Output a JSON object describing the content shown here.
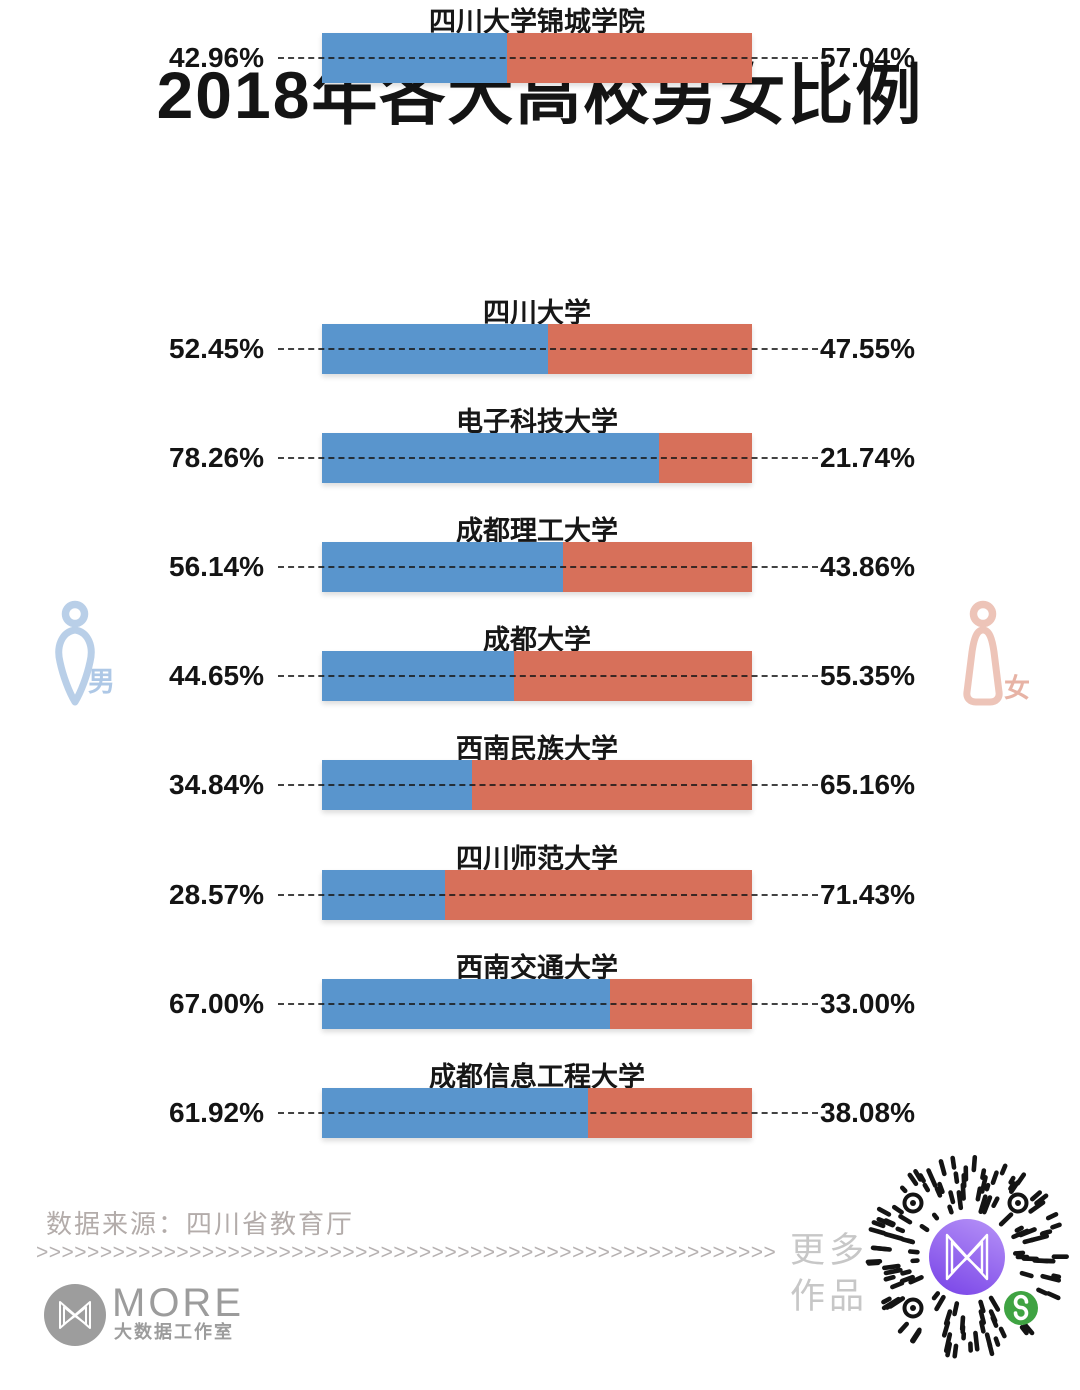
{
  "title": "2018年各大高校男女比例",
  "legend": {
    "male_label": "男",
    "female_label": "女"
  },
  "colors": {
    "male_bar": "#5995cd",
    "female_bar": "#d7705a",
    "male_icon": "#b9cfe8",
    "female_icon": "#edc4b8",
    "qr_purple_light": "#b18cf6",
    "qr_purple_dark": "#7c48e8",
    "qr_green": "#3fa342",
    "logo_gray": "#9c9c9c"
  },
  "chart_data": {
    "type": "bar",
    "orientation": "horizontal-stacked",
    "title": "2018年各大高校男女比例",
    "categories": [
      "四川大学",
      "电子科技大学",
      "成都理工大学",
      "成都大学",
      "西南民族大学",
      "四川师范大学",
      "西南交通大学",
      "成都信息工程大学",
      "四川大学锦城学院"
    ],
    "series": [
      {
        "name": "男",
        "color": "#5995cd",
        "values": [
          52.45,
          78.26,
          56.14,
          44.65,
          34.84,
          28.57,
          67.0,
          61.92,
          42.96
        ]
      },
      {
        "name": "女",
        "color": "#d7705a",
        "values": [
          47.55,
          21.74,
          43.86,
          55.35,
          65.16,
          71.43,
          33.0,
          38.08,
          57.04
        ]
      }
    ],
    "value_format": "percent",
    "xlim": [
      0,
      100
    ],
    "grid": false,
    "legend_position": "sides"
  },
  "rows": [
    {
      "school": "四川大学",
      "male": "52.45%",
      "female": "47.55%"
    },
    {
      "school": "电子科技大学",
      "male": "78.26%",
      "female": "21.74%"
    },
    {
      "school": "成都理工大学",
      "male": "56.14%",
      "female": "43.86%"
    },
    {
      "school": "成都大学",
      "male": "44.65%",
      "female": "55.35%"
    },
    {
      "school": "西南民族大学",
      "male": "34.84%",
      "female": "65.16%"
    },
    {
      "school": "四川师范大学",
      "male": "28.57%",
      "female": "71.43%"
    },
    {
      "school": "西南交通大学",
      "male": "67.00%",
      "female": "33.00%"
    },
    {
      "school": "成都信息工程大学",
      "male": "61.92%",
      "female": "38.08%"
    },
    {
      "school": "四川大学锦城学院",
      "male": "42.96%",
      "female": "57.04%"
    }
  ],
  "footer": {
    "source": "数据来源：四川省教育厅",
    "chevrons": ">>>>>>>>>>>>>>>>>>>>>>>>>>>>>>>>>>>>>>>>>>>>>>>>>>>>>>>>>>",
    "logo_name": "MORE",
    "logo_sub": "大数据工作室",
    "more_works_line1": "更多",
    "more_works_line2": "作品"
  }
}
